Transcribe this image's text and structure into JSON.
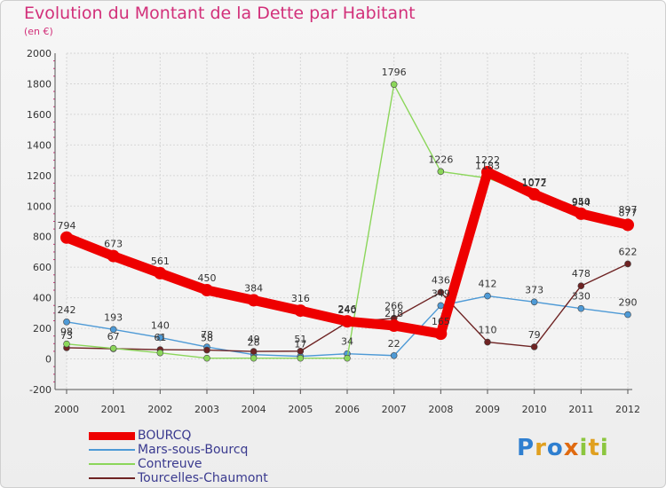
{
  "title": "Evolution du Montant de la Dette par Habitant",
  "unit": "(en €)",
  "logo": "Proxiti",
  "chart_data": {
    "type": "line",
    "x": [
      2000,
      2001,
      2002,
      2003,
      2004,
      2005,
      2006,
      2007,
      2008,
      2009,
      2010,
      2011,
      2012
    ],
    "xlabel": "",
    "ylabel": "",
    "ylim": [
      -200,
      2000
    ],
    "yticks": [
      -200,
      0,
      200,
      400,
      600,
      800,
      1000,
      1200,
      1400,
      1600,
      1800,
      2000
    ],
    "grid": true,
    "legend": "bottom-left",
    "series": [
      {
        "name": "BOURCQ",
        "color": "#ee0000",
        "values": [
          794,
          673,
          561,
          450,
          384,
          316,
          246,
          218,
          165,
          1222,
          1077,
          950,
          877
        ],
        "labels": [
          "794",
          "673",
          "561",
          "450",
          "384",
          "316",
          "246",
          "218",
          "165",
          "1222",
          "1077",
          "950",
          "877"
        ]
      },
      {
        "name": "Mars-sous-Bourcq",
        "color": "#4e9ad6",
        "values": [
          242,
          193,
          140,
          78,
          28,
          17,
          34,
          22,
          349,
          412,
          373,
          330,
          290
        ],
        "labels": [
          "242",
          "193",
          "140",
          "78",
          "28",
          "17",
          "34",
          "22",
          "349",
          "412",
          "373",
          "330",
          "290"
        ]
      },
      {
        "name": "Contreuve",
        "color": "#8bd65a",
        "values": [
          98,
          69,
          40,
          5,
          5,
          5,
          5,
          1796,
          1226,
          1183,
          1072,
          944,
          897
        ],
        "labels": [
          "98",
          "",
          "",
          "",
          "",
          "",
          "",
          "1796",
          "1226",
          "1183",
          "1072",
          "944",
          "897"
        ]
      },
      {
        "name": "Tourcelles-Chaumont",
        "color": "#6e2323",
        "values": [
          73,
          67,
          61,
          58,
          49,
          51,
          240,
          266,
          436,
          110,
          79,
          478,
          622
        ],
        "labels": [
          "73",
          "67",
          "61",
          "58",
          "49",
          "51",
          "240",
          "266",
          "436",
          "110",
          "79",
          "478",
          "622"
        ]
      }
    ]
  }
}
